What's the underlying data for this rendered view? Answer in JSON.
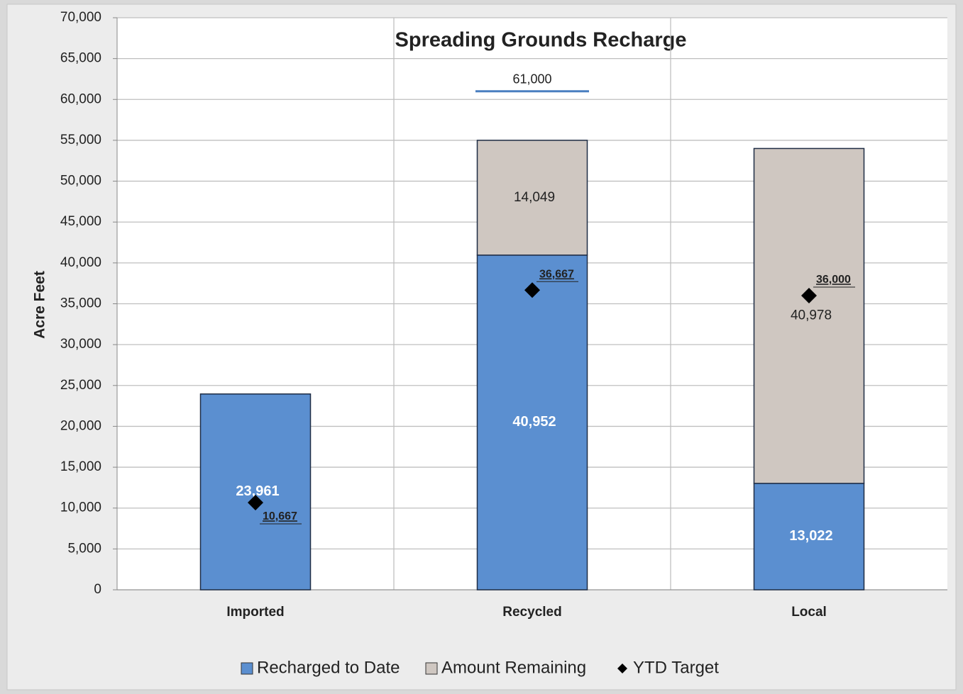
{
  "chart_data": {
    "type": "stacked_bar",
    "title": "Spreading Grounds Recharge",
    "y_label": "Acre Feet",
    "categories": [
      "Imported",
      "Recycled",
      "Local"
    ],
    "series": [
      {
        "name": "Recharged to Date",
        "color": "#5b8fd0",
        "values": [
          23961,
          40952,
          13022
        ],
        "value_labels": [
          "23,961",
          "40,952",
          "13,022"
        ]
      },
      {
        "name": "Amount Remaining",
        "color": "#cfc7c1",
        "values": [
          null,
          14049,
          40978
        ],
        "value_labels": [
          null,
          "14,049",
          "40,978"
        ]
      },
      {
        "name": "YTD Target",
        "type": "marker",
        "color": "#000000",
        "values": [
          10667,
          36667,
          36000
        ],
        "value_labels": [
          "10,667",
          "36,667",
          "36,000"
        ]
      }
    ],
    "reference_lines": [
      {
        "category": "Recycled",
        "value": 61000,
        "label": "61,000",
        "color": "#4a7fc0"
      }
    ],
    "ylim": [
      0,
      70000
    ],
    "yticks": [
      0,
      {
        "value": 5000,
        "label": "5,000"
      },
      {
        "value": 10000,
        "label": "10,000"
      },
      {
        "value": 15000,
        "label": "15,000"
      },
      {
        "value": 20000,
        "label": "20,000"
      },
      {
        "value": 25000,
        "label": "25,000"
      },
      {
        "value": 30000,
        "label": "30,000"
      },
      {
        "value": 35000,
        "label": "35,000"
      },
      {
        "value": 40000,
        "label": "40,000"
      },
      {
        "value": 45000,
        "label": "45,000"
      },
      {
        "value": 50000,
        "label": "50,000"
      },
      {
        "value": 55000,
        "label": "55,000"
      },
      {
        "value": 60000,
        "label": "60,000"
      },
      {
        "value": 65000,
        "label": "65,000"
      },
      {
        "value": 70000,
        "label": "70,000"
      }
    ],
    "grid": true,
    "legend": "bottom"
  }
}
